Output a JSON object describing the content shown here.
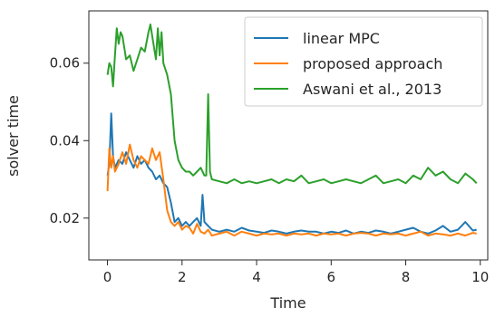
{
  "chart_data": {
    "type": "line",
    "title": "",
    "xlabel": "Time",
    "ylabel": "solver time",
    "xlim": [
      -0.5,
      10.2
    ],
    "ylim": [
      0.0092,
      0.0735
    ],
    "xticks": [
      0,
      2,
      4,
      6,
      8,
      10
    ],
    "xtick_labels": [
      "0",
      "2",
      "4",
      "6",
      "8",
      "10"
    ],
    "yticks": [
      0.02,
      0.04,
      0.06
    ],
    "ytick_labels": [
      "0.02",
      "0.04",
      "0.06"
    ],
    "grid": false,
    "legend_position": "top-right",
    "series": [
      {
        "name": "linear MPC",
        "color": "#1f77b4",
        "x": [
          0,
          0.05,
          0.1,
          0.15,
          0.2,
          0.3,
          0.4,
          0.5,
          0.6,
          0.7,
          0.8,
          0.9,
          1.0,
          1.1,
          1.2,
          1.3,
          1.4,
          1.5,
          1.6,
          1.7,
          1.8,
          1.9,
          2.0,
          2.1,
          2.2,
          2.3,
          2.4,
          2.5,
          2.55,
          2.6,
          2.7,
          2.8,
          3.0,
          3.2,
          3.4,
          3.6,
          3.8,
          4.0,
          4.2,
          4.4,
          4.6,
          4.8,
          5.0,
          5.2,
          5.4,
          5.6,
          5.8,
          6.0,
          6.2,
          6.4,
          6.6,
          6.8,
          7.0,
          7.2,
          7.4,
          7.6,
          7.8,
          8.0,
          8.2,
          8.4,
          8.6,
          8.8,
          9.0,
          9.2,
          9.4,
          9.6,
          9.8,
          9.9
        ],
        "values": [
          0.031,
          0.034,
          0.047,
          0.036,
          0.033,
          0.035,
          0.034,
          0.037,
          0.035,
          0.033,
          0.036,
          0.034,
          0.035,
          0.033,
          0.032,
          0.03,
          0.031,
          0.029,
          0.028,
          0.024,
          0.019,
          0.02,
          0.018,
          0.019,
          0.018,
          0.019,
          0.02,
          0.018,
          0.026,
          0.019,
          0.018,
          0.017,
          0.0165,
          0.017,
          0.0165,
          0.0175,
          0.0168,
          0.0165,
          0.0162,
          0.0168,
          0.0165,
          0.016,
          0.0165,
          0.0168,
          0.0165,
          0.0165,
          0.016,
          0.0165,
          0.0162,
          0.0168,
          0.016,
          0.0165,
          0.0162,
          0.0168,
          0.0165,
          0.016,
          0.0165,
          0.017,
          0.0175,
          0.0165,
          0.016,
          0.0168,
          0.018,
          0.0165,
          0.017,
          0.019,
          0.0168,
          0.017
        ]
      },
      {
        "name": "proposed approach",
        "color": "#ff7f0e",
        "x": [
          0,
          0.05,
          0.1,
          0.15,
          0.2,
          0.3,
          0.4,
          0.5,
          0.6,
          0.7,
          0.8,
          0.9,
          1.0,
          1.1,
          1.2,
          1.3,
          1.4,
          1.5,
          1.6,
          1.7,
          1.8,
          1.9,
          2.0,
          2.1,
          2.2,
          2.3,
          2.4,
          2.5,
          2.6,
          2.7,
          2.8,
          3.0,
          3.2,
          3.4,
          3.6,
          3.8,
          4.0,
          4.2,
          4.4,
          4.6,
          4.8,
          5.0,
          5.2,
          5.4,
          5.6,
          5.8,
          6.0,
          6.2,
          6.4,
          6.6,
          6.8,
          7.0,
          7.2,
          7.4,
          7.6,
          7.8,
          8.0,
          8.2,
          8.4,
          8.6,
          8.8,
          9.0,
          9.2,
          9.4,
          9.6,
          9.8,
          9.9
        ],
        "values": [
          0.027,
          0.038,
          0.033,
          0.036,
          0.032,
          0.034,
          0.037,
          0.034,
          0.039,
          0.035,
          0.033,
          0.036,
          0.035,
          0.034,
          0.038,
          0.035,
          0.037,
          0.03,
          0.022,
          0.019,
          0.018,
          0.019,
          0.017,
          0.018,
          0.0175,
          0.016,
          0.0185,
          0.0165,
          0.016,
          0.017,
          0.0155,
          0.016,
          0.0165,
          0.0155,
          0.0165,
          0.016,
          0.0155,
          0.016,
          0.0158,
          0.016,
          0.0155,
          0.016,
          0.0158,
          0.016,
          0.0155,
          0.016,
          0.0158,
          0.016,
          0.0155,
          0.016,
          0.0162,
          0.016,
          0.0155,
          0.016,
          0.0158,
          0.016,
          0.0155,
          0.016,
          0.0165,
          0.0155,
          0.016,
          0.0158,
          0.0155,
          0.016,
          0.0155,
          0.0162,
          0.016
        ]
      },
      {
        "name": "Aswani et al., 2013",
        "color": "#2ca02c",
        "x": [
          0,
          0.05,
          0.1,
          0.15,
          0.2,
          0.25,
          0.3,
          0.35,
          0.4,
          0.45,
          0.5,
          0.6,
          0.7,
          0.8,
          0.9,
          1.0,
          1.1,
          1.15,
          1.2,
          1.3,
          1.35,
          1.4,
          1.45,
          1.5,
          1.6,
          1.7,
          1.8,
          1.9,
          2.0,
          2.1,
          2.2,
          2.3,
          2.4,
          2.5,
          2.6,
          2.65,
          2.7,
          2.75,
          2.8,
          3.0,
          3.2,
          3.4,
          3.6,
          3.8,
          4.0,
          4.2,
          4.4,
          4.6,
          4.8,
          5.0,
          5.2,
          5.4,
          5.6,
          5.8,
          6.0,
          6.2,
          6.4,
          6.6,
          6.8,
          7.0,
          7.2,
          7.4,
          7.6,
          7.8,
          8.0,
          8.2,
          8.4,
          8.6,
          8.8,
          9.0,
          9.2,
          9.4,
          9.6,
          9.8,
          9.9
        ],
        "values": [
          0.057,
          0.06,
          0.059,
          0.054,
          0.062,
          0.069,
          0.065,
          0.068,
          0.067,
          0.064,
          0.061,
          0.062,
          0.058,
          0.061,
          0.064,
          0.063,
          0.068,
          0.07,
          0.067,
          0.061,
          0.069,
          0.062,
          0.068,
          0.06,
          0.057,
          0.052,
          0.04,
          0.035,
          0.033,
          0.032,
          0.032,
          0.031,
          0.032,
          0.033,
          0.031,
          0.031,
          0.052,
          0.032,
          0.03,
          0.0295,
          0.029,
          0.03,
          0.029,
          0.0295,
          0.029,
          0.0295,
          0.03,
          0.029,
          0.03,
          0.0295,
          0.031,
          0.029,
          0.0295,
          0.03,
          0.029,
          0.0295,
          0.03,
          0.0295,
          0.029,
          0.03,
          0.031,
          0.029,
          0.0295,
          0.03,
          0.029,
          0.031,
          0.03,
          0.033,
          0.031,
          0.032,
          0.03,
          0.029,
          0.0315,
          0.03,
          0.029
        ]
      }
    ]
  }
}
